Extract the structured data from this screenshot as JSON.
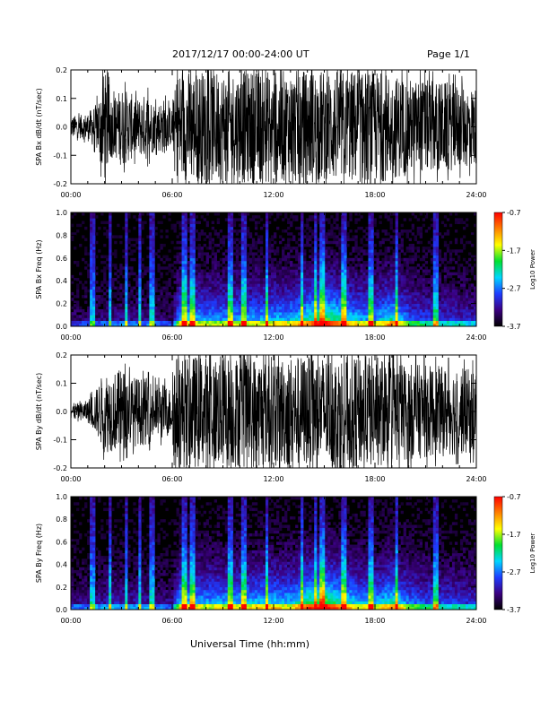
{
  "header": {
    "title": "2017/12/17   00:00-24:00 UT",
    "page": "Page 1/1"
  },
  "footer": {
    "xlabel": "Universal Time (hh:mm)"
  },
  "colors": {
    "waveform": "#000000",
    "background": "#ffffff",
    "colorbar": [
      "#000000",
      "#3b0080",
      "#1e3cff",
      "#00d7ff",
      "#00e030",
      "#ffff00",
      "#ff8000",
      "#ff0000"
    ]
  },
  "chart_data": [
    {
      "type": "line",
      "ylabel": "SPA Bx dB/dt (nT/sec)",
      "xticks": [
        "00:00",
        "06:00",
        "12:00",
        "18:00",
        "24:00"
      ],
      "xlim": [
        0,
        24
      ],
      "ylim": [
        -0.2,
        0.2
      ],
      "yticks": [
        "-0.2",
        "-0.1",
        "0.0",
        "0.1",
        "0.2"
      ],
      "envelope_hours": [
        0,
        0.5,
        1,
        1.5,
        2,
        2.5,
        3,
        3.5,
        4,
        4.5,
        5,
        5.5,
        6,
        6.3,
        6.5,
        8,
        10,
        12,
        14,
        16,
        18,
        20,
        22,
        24
      ],
      "envelope_amplitude": [
        0.04,
        0.04,
        0.05,
        0.08,
        0.2,
        0.1,
        0.14,
        0.12,
        0.1,
        0.12,
        0.08,
        0.1,
        0.06,
        0.2,
        0.2,
        0.2,
        0.2,
        0.2,
        0.2,
        0.2,
        0.2,
        0.17,
        0.16,
        0.14
      ]
    },
    {
      "type": "heatmap",
      "ylabel": "SPA Bx Freq (Hz)",
      "xticks": [
        "00:00",
        "06:00",
        "12:00",
        "18:00",
        "24:00"
      ],
      "xlim": [
        0,
        24
      ],
      "ylim": [
        0,
        1
      ],
      "yticks": [
        "0.0",
        "0.2",
        "0.4",
        "0.6",
        "0.8",
        "1.0"
      ],
      "colorbar": {
        "label": "Log10 Power",
        "min": -3.7,
        "max": -0.7,
        "ticks": [
          "-0.7",
          "-1.7",
          "-2.7",
          "-3.7"
        ]
      },
      "activity_hours": [
        0,
        1,
        2,
        3,
        4,
        5,
        6,
        6.5,
        8,
        10,
        12,
        13,
        14,
        15,
        16,
        17,
        18,
        19,
        20,
        21,
        22,
        23,
        24
      ],
      "activity_level": [
        0.12,
        0.12,
        0.15,
        0.18,
        0.17,
        0.16,
        0.12,
        0.5,
        0.4,
        0.42,
        0.45,
        0.45,
        0.55,
        0.65,
        0.55,
        0.45,
        0.4,
        0.55,
        0.35,
        0.3,
        0.28,
        0.25,
        0.22
      ],
      "bright_streaks_hours": [
        1.3,
        2.3,
        3.3,
        4.1,
        4.8,
        6.7,
        7.2,
        9.4,
        10.2,
        11.6,
        13.7,
        14.5,
        14.9,
        16.2,
        17.8,
        19.3,
        21.6
      ]
    },
    {
      "type": "line",
      "ylabel": "SPA By dB/dt (nT/sec)",
      "xticks": [
        "00:00",
        "06:00",
        "12:00",
        "18:00",
        "24:00"
      ],
      "xlim": [
        0,
        24
      ],
      "ylim": [
        -0.2,
        0.2
      ],
      "yticks": [
        "-0.2",
        "-0.1",
        "0.0",
        "0.1",
        "0.2"
      ],
      "envelope_hours": [
        0,
        0.5,
        1,
        1.5,
        2,
        2.5,
        3,
        3.5,
        4,
        4.5,
        5,
        5.5,
        6,
        6.1,
        6.5,
        8,
        10,
        12,
        14,
        16,
        18,
        20,
        22,
        24
      ],
      "envelope_amplitude": [
        0.03,
        0.03,
        0.04,
        0.08,
        0.15,
        0.14,
        0.15,
        0.13,
        0.12,
        0.12,
        0.1,
        0.1,
        0.08,
        0.2,
        0.2,
        0.2,
        0.2,
        0.2,
        0.2,
        0.2,
        0.2,
        0.17,
        0.16,
        0.15
      ]
    },
    {
      "type": "heatmap",
      "ylabel": "SPA By Freq (Hz)",
      "xticks": [
        "00:00",
        "06:00",
        "12:00",
        "18:00",
        "24:00"
      ],
      "xlim": [
        0,
        24
      ],
      "ylim": [
        0,
        1
      ],
      "yticks": [
        "0.0",
        "0.2",
        "0.4",
        "0.6",
        "0.8",
        "1.0"
      ],
      "colorbar": {
        "label": "Log10 Power",
        "min": -3.7,
        "max": -0.7,
        "ticks": [
          "-0.7",
          "-1.7",
          "-2.7",
          "-3.7"
        ]
      },
      "activity_hours": [
        0,
        1,
        2,
        3,
        4,
        5,
        6,
        6.5,
        8,
        10,
        12,
        13,
        14,
        15,
        16,
        17,
        18,
        19,
        20,
        21,
        22,
        23,
        24
      ],
      "activity_level": [
        0.15,
        0.16,
        0.2,
        0.22,
        0.2,
        0.18,
        0.15,
        0.5,
        0.42,
        0.45,
        0.48,
        0.45,
        0.6,
        0.7,
        0.55,
        0.45,
        0.42,
        0.55,
        0.38,
        0.32,
        0.3,
        0.28,
        0.25
      ],
      "bright_streaks_hours": [
        1.3,
        2.3,
        3.3,
        4.1,
        4.8,
        6.7,
        7.2,
        9.4,
        10.2,
        11.6,
        13.7,
        14.5,
        14.9,
        16.2,
        17.8,
        19.3,
        21.6
      ]
    }
  ]
}
